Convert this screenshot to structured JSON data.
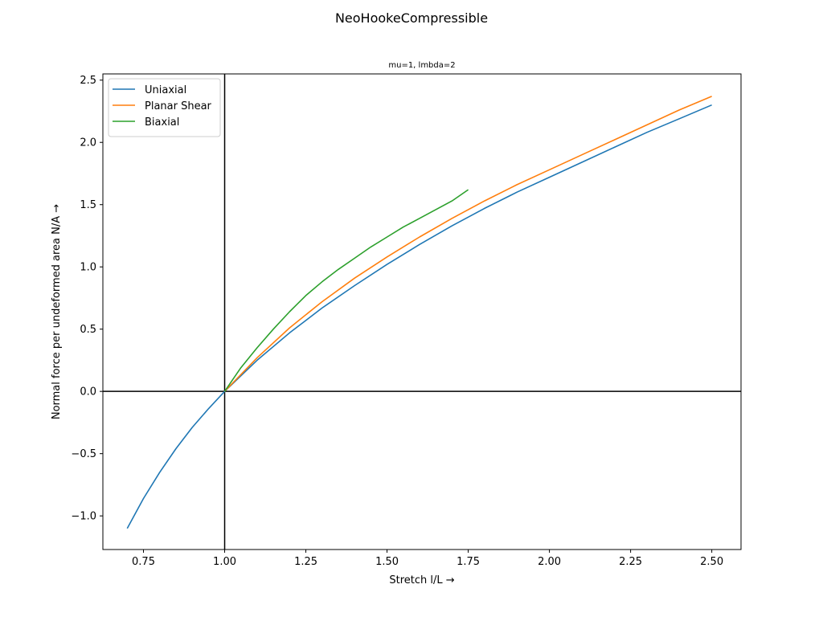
{
  "chart_data": {
    "type": "line",
    "title": "NeoHookeCompressible",
    "subtitle": "mu=1, lmbda=2",
    "xlabel": "Stretch l/L  →",
    "ylabel": "Normal force per undeformed area N/A  →",
    "xlim": [
      0.625,
      2.59
    ],
    "ylim": [
      -1.27,
      2.55
    ],
    "xticks": [
      0.75,
      1.0,
      1.25,
      1.5,
      1.75,
      2.0,
      2.25,
      2.5
    ],
    "xtick_labels": [
      "0.75",
      "1.00",
      "1.25",
      "1.50",
      "1.75",
      "2.00",
      "2.25",
      "2.50"
    ],
    "yticks": [
      -1.0,
      -0.5,
      0.0,
      0.5,
      1.0,
      1.5,
      2.0,
      2.5
    ],
    "ytick_labels": [
      "−1.0",
      "−0.5",
      "0.0",
      "0.5",
      "1.0",
      "1.5",
      "2.0",
      "2.5"
    ],
    "grid": false,
    "legend_position": "top-left",
    "reference_lines": {
      "x": 1.0,
      "y": 0.0
    },
    "series": [
      {
        "name": "Uniaxial",
        "color": "#1f77b4",
        "x": [
          0.7,
          0.75,
          0.8,
          0.85,
          0.9,
          0.95,
          1.0,
          1.1,
          1.2,
          1.3,
          1.4,
          1.5,
          1.6,
          1.7,
          1.8,
          1.9,
          2.0,
          2.1,
          2.2,
          2.3,
          2.4,
          2.5
        ],
        "y": [
          -1.1,
          -0.86,
          -0.65,
          -0.46,
          -0.29,
          -0.14,
          0.0,
          0.25,
          0.47,
          0.67,
          0.85,
          1.02,
          1.18,
          1.33,
          1.47,
          1.6,
          1.72,
          1.84,
          1.96,
          2.08,
          2.19,
          2.3
        ]
      },
      {
        "name": "Planar Shear",
        "color": "#ff7f0e",
        "x": [
          1.0,
          1.1,
          1.2,
          1.3,
          1.4,
          1.5,
          1.6,
          1.7,
          1.8,
          1.9,
          2.0,
          2.1,
          2.2,
          2.3,
          2.4,
          2.5
        ],
        "y": [
          0.0,
          0.27,
          0.51,
          0.72,
          0.91,
          1.08,
          1.24,
          1.39,
          1.53,
          1.66,
          1.78,
          1.9,
          2.02,
          2.14,
          2.26,
          2.37
        ]
      },
      {
        "name": "Biaxial",
        "color": "#2ca02c",
        "x": [
          1.0,
          1.05,
          1.1,
          1.15,
          1.2,
          1.25,
          1.3,
          1.35,
          1.4,
          1.45,
          1.5,
          1.55,
          1.6,
          1.65,
          1.7,
          1.75
        ],
        "y": [
          0.0,
          0.19,
          0.35,
          0.5,
          0.64,
          0.77,
          0.88,
          0.98,
          1.07,
          1.16,
          1.24,
          1.32,
          1.39,
          1.46,
          1.53,
          1.62
        ]
      }
    ]
  }
}
